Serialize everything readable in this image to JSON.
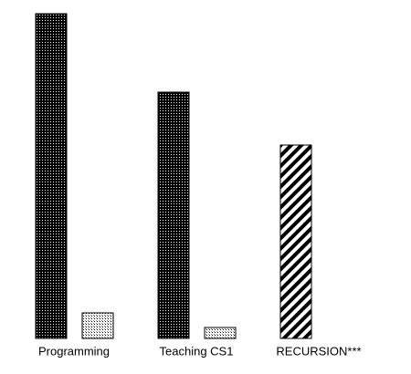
{
  "chart_data": {
    "type": "bar",
    "categories": [
      "Programming",
      "Teaching CS1",
      "RECURSION***"
    ],
    "series": [
      {
        "patterns": [
          "dense",
          "dense",
          "stripes"
        ],
        "values": [
          356,
          270,
          212
        ]
      },
      {
        "patterns": [
          "light",
          "light",
          "light"
        ],
        "values": [
          28,
          12,
          null
        ]
      }
    ],
    "ylim": [
      0,
      360
    ]
  }
}
